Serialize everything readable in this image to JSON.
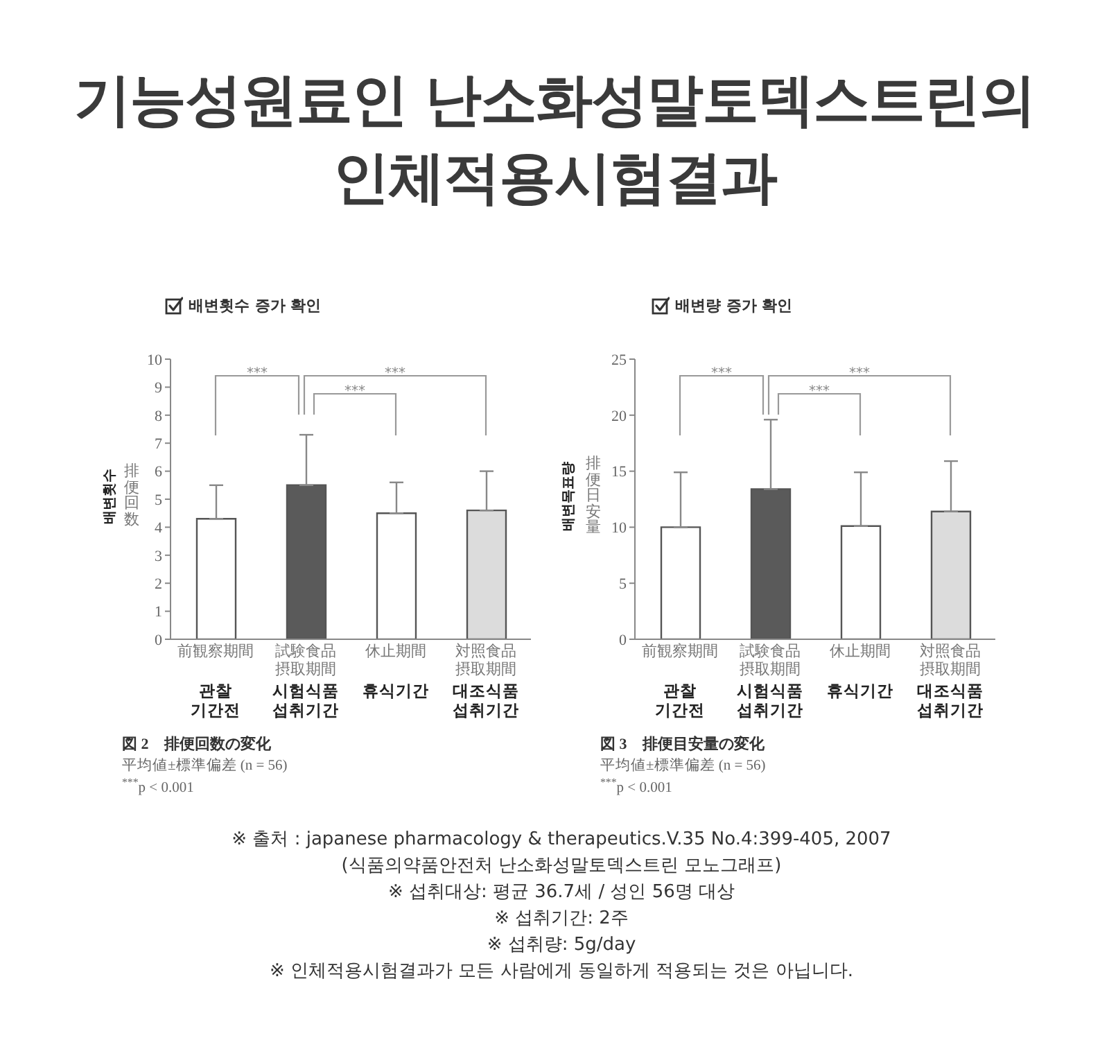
{
  "chart_data": [
    {
      "type": "other",
      "title": "기능성원료인 난소화성말토덱스트린의\n인체적용시험결과"
    },
    {
      "type": "bar",
      "title": "배변횟수 증가 확인",
      "ylabel": "배변횟수\n排便回数",
      "categories": [
        "前観察期間\n\n관찰\n기간전",
        "試験食品摂取期間\n\n시험식품\n섭취기간",
        "休止期間\n\n휴식기간",
        "対照食品摂取期間\n\n대조식품\n섭취기간"
      ],
      "values": [
        4.3,
        5.5,
        4.5,
        4.6
      ],
      "errors": [
        [
          4.3,
          5.5
        ],
        [
          5.5,
          7.3
        ],
        [
          4.5,
          5.6
        ],
        [
          4.6,
          6.0
        ]
      ],
      "colors": [
        "#ffffff",
        "#5a5a5a",
        "#ffffff",
        "#dcdcdc"
      ],
      "ylim": [
        0,
        10
      ],
      "yticks": [
        0,
        1,
        2,
        3,
        4,
        5,
        6,
        7,
        8,
        9,
        10
      ],
      "annotations": [
        "***",
        "***",
        "***",
        "図 2　排便回数の変化",
        "平均値±標準偏差 (n = 56)",
        "$^{***}$p < 0.001"
      ]
    },
    {
      "type": "bar",
      "title": "배변량 증가 확인",
      "ylabel": "배변목표량\n排便日安量",
      "categories": [
        "前観察期間\n\n관찰\n기간전",
        "試験食品摂取期間\n\n시험식품\n섭취기간",
        "休止期間\n\n휴식기간",
        "対照食品摂取期間\n\n대조식품\n섭취기간"
      ],
      "values": [
        10.0,
        13.4,
        10.1,
        11.4
      ],
      "errors": [
        [
          10.0,
          14.9
        ],
        [
          13.4,
          19.6
        ],
        [
          10.1,
          14.9
        ],
        [
          11.4,
          15.9
        ]
      ],
      "colors": [
        "#ffffff",
        "#5a5a5a",
        "#ffffff",
        "#dcdcdc"
      ],
      "ylim": [
        0,
        25
      ],
      "yticks": [
        0,
        5,
        10,
        15,
        20,
        25
      ],
      "annotations": [
        "***",
        "***",
        "***",
        "図 3　排便目安量の変化",
        "平均値±標準偏差 (n = 56)",
        "$^{***}$p < 0.001"
      ]
    },
    {
      "type": "other",
      "annotations": [
        "※ 출처 : japanese pharmacology & therapeutics.V.35 No.4:399-405, 2007",
        "(식품의약품안전처 난소화성말토덱스트린 모노그래프)",
        "※ 섭취대상: 평균 36.7세 / 성인 56명 대상",
        "※ 섭취기간: 2주",
        "※ 섭취량: 5g/day",
        "※ 인체적용시험결과가 모든 사람에게 동일하게 적용되는 것은 아닙니다."
      ]
    }
  ]
}
